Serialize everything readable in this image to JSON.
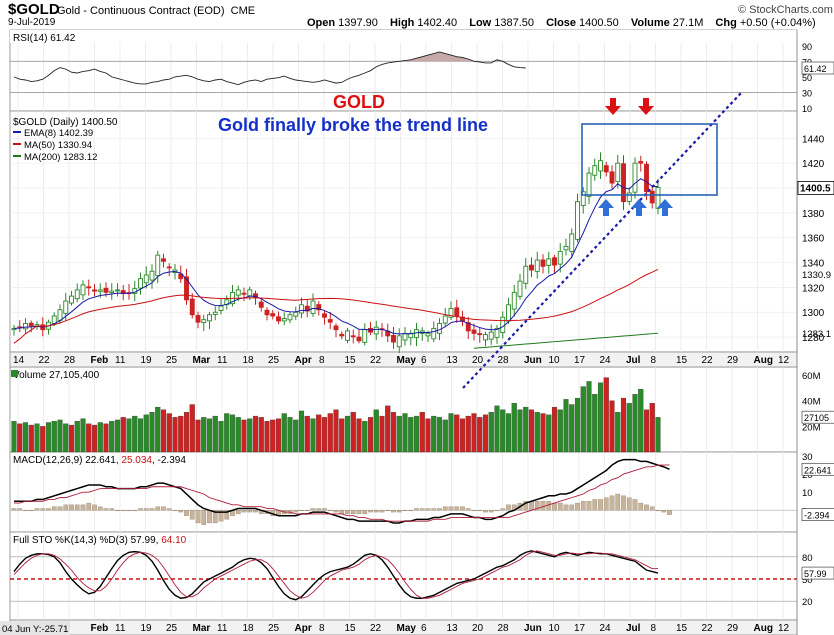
{
  "header": {
    "symbol": "$GOLD",
    "name": "Gold - Continuous Contract (EOD)",
    "exchange": "CME",
    "date": "9-Jul-2019",
    "open_label": "Open",
    "open": "1397.90",
    "high_label": "High",
    "high": "1402.40",
    "low_label": "Low",
    "low": "1387.50",
    "close_label": "Close",
    "close": "1400.50",
    "volume_label": "Volume",
    "volume": "27.1M",
    "chg_label": "Chg",
    "chg": "+0.50 (+0.04%)",
    "brand": "© StockCharts.com"
  },
  "colors": {
    "up": "#2a8a2a",
    "down": "#cc2222",
    "ema": "#1a1aa8",
    "ma50": "#cc1111",
    "ma200": "#1e7a1e",
    "annotation_red": "#dd1111",
    "annotation_blue": "#1530c8",
    "arrow_blue": "#2f6fd6",
    "box": "#2a63b8",
    "trendline": "#1a1aa8"
  },
  "chart_data": [
    {
      "type": "line",
      "panel": "RSI",
      "title": "RSI(14) 61.42",
      "last": 61.42,
      "last_label": "61.42",
      "ylim": [
        10,
        100
      ],
      "ticks": [
        "90",
        "70",
        "50",
        "30",
        "10"
      ],
      "reference_lines": [
        70,
        30
      ],
      "values": [
        50,
        47,
        46,
        44,
        45,
        47,
        52,
        58,
        62,
        60,
        56,
        55,
        57,
        58,
        60,
        57,
        55,
        50,
        48,
        46,
        44,
        42,
        41,
        41,
        43,
        44,
        46,
        47,
        50,
        51,
        52,
        50,
        47,
        45,
        44,
        46,
        47,
        44,
        42,
        40,
        43,
        45,
        46,
        44,
        47,
        48,
        49,
        51,
        48,
        46,
        45,
        44,
        43,
        44,
        46,
        44,
        42,
        43,
        47,
        50,
        52,
        55,
        58,
        63,
        66,
        68,
        69,
        70,
        71,
        72,
        74,
        76,
        78,
        80,
        82,
        80,
        78,
        76,
        75,
        73,
        70,
        69,
        68,
        68,
        72,
        70,
        66,
        63,
        62,
        61.42
      ]
    },
    {
      "type": "candlestick",
      "panel": "price",
      "title": "$GOLD (Daily) 1400.50",
      "legend": [
        {
          "label": "EMA(8) 1402.39",
          "color": "#1a1aa8"
        },
        {
          "label": "MA(50) 1330.94",
          "color": "#cc1111"
        },
        {
          "label": "MA(200) 1283.12",
          "color": "#1e7a1e"
        }
      ],
      "ylim": [
        1268,
        1462
      ],
      "yticks": [
        1440,
        1420,
        1400,
        1380,
        1360,
        1340,
        1320,
        1300,
        1280
      ],
      "last_labels": [
        {
          "text": "1400.5",
          "value": 1400.5,
          "style": "box"
        },
        {
          "text": "1330.9",
          "value": 1330.94,
          "style": "plain"
        },
        {
          "text": "1283.1",
          "value": 1283.12,
          "style": "plain"
        }
      ],
      "annotations": [
        "GOLD",
        "Gold finally broke the trend line"
      ],
      "x_labels": [
        "14",
        "22",
        "28",
        "Feb",
        "11",
        "19",
        "25",
        "Mar",
        "11",
        "18",
        "25",
        "Apr",
        "8",
        "15",
        "22",
        "May",
        "6",
        "13",
        "20",
        "28",
        "Jun",
        "10",
        "17",
        "24",
        "Jul",
        "8",
        "15",
        "22",
        "29",
        "Aug",
        "12"
      ],
      "close": [
        1287,
        1288,
        1291,
        1289,
        1290,
        1286,
        1292,
        1297,
        1302,
        1309,
        1313,
        1318,
        1322,
        1320,
        1317,
        1318,
        1316,
        1317,
        1318,
        1315,
        1315,
        1319,
        1327,
        1330,
        1333,
        1346,
        1341,
        1336,
        1334,
        1327,
        1310,
        1298,
        1292,
        1294,
        1298,
        1300,
        1305,
        1310,
        1316,
        1318,
        1315,
        1318,
        1312,
        1304,
        1298,
        1297,
        1293,
        1295,
        1298,
        1300,
        1306,
        1301,
        1309,
        1302,
        1296,
        1292,
        1286,
        1281,
        1285,
        1281,
        1277,
        1286,
        1284,
        1288,
        1286,
        1281,
        1276,
        1281,
        1283,
        1283,
        1286,
        1285,
        1283,
        1287,
        1291,
        1297,
        1303,
        1297,
        1293,
        1285,
        1283,
        1282,
        1282,
        1284,
        1287,
        1296,
        1306,
        1316,
        1325,
        1337,
        1334,
        1342,
        1337,
        1343,
        1338,
        1349,
        1353,
        1363,
        1389,
        1397,
        1412,
        1418,
        1422,
        1413,
        1404,
        1420,
        1389,
        1396,
        1420,
        1420,
        1397,
        1388,
        1400.5
      ],
      "volume_label": "Volume 27,105,400",
      "volume_ylim": [
        0,
        60000000
      ],
      "volume_ticks": [
        "60M",
        "40M",
        "20M"
      ],
      "volume_last_label": "27105",
      "volume": [
        24,
        22,
        23,
        21,
        22,
        20,
        23,
        24,
        25,
        22,
        21,
        24,
        26,
        22,
        21,
        23,
        22,
        24,
        25,
        27,
        26,
        28,
        26,
        29,
        31,
        35,
        33,
        30,
        27,
        28,
        31,
        37,
        25,
        27,
        26,
        28,
        24,
        30,
        29,
        27,
        25,
        26,
        28,
        27,
        24,
        25,
        26,
        30,
        27,
        25,
        32,
        28,
        26,
        29,
        27,
        30,
        33,
        26,
        28,
        31,
        26,
        24,
        27,
        33,
        28,
        36,
        31,
        28,
        30,
        27,
        28,
        31,
        26,
        28,
        27,
        25,
        30,
        29,
        26,
        28,
        30,
        27,
        29,
        31,
        36,
        33,
        30,
        38,
        33,
        35,
        33,
        31,
        30,
        29,
        35,
        33,
        41,
        37,
        42,
        51,
        55,
        45,
        54,
        58,
        40,
        31,
        42,
        38,
        45,
        49,
        33,
        38,
        27
      ],
      "volume_up": [
        1,
        0,
        1,
        0,
        1,
        0,
        1,
        1,
        1,
        1,
        0,
        1,
        1,
        0,
        0,
        1,
        0,
        1,
        1,
        0,
        1,
        1,
        1,
        1,
        1,
        1,
        0,
        0,
        0,
        0,
        0,
        0,
        0,
        1,
        1,
        1,
        1,
        1,
        1,
        1,
        0,
        1,
        0,
        0,
        0,
        0,
        0,
        1,
        1,
        1,
        1,
        0,
        1,
        0,
        0,
        0,
        0,
        0,
        1,
        0,
        0,
        1,
        0,
        1,
        0,
        0,
        0,
        1,
        1,
        1,
        1,
        0,
        0,
        1,
        1,
        1,
        1,
        0,
        0,
        0,
        0,
        0,
        0,
        1,
        1,
        1,
        1,
        1,
        1,
        1,
        0,
        1,
        0,
        1,
        0,
        1,
        1,
        1,
        1,
        1,
        1,
        1,
        1,
        0,
        0,
        1,
        0,
        1,
        1,
        1,
        0,
        0,
        1
      ]
    },
    {
      "type": "line",
      "panel": "MACD",
      "title": "MACD(12,26,9) 22.641, 25.034, -2.394",
      "title_parts": [
        "MACD(12,26,9) 22.641, ",
        "25.034",
        ", -2.394"
      ],
      "ylim": [
        -12,
        30
      ],
      "ticks": [
        "30",
        "20",
        "10",
        "0"
      ],
      "last_labels": [
        "22.641",
        "-2.394"
      ],
      "macd": [
        5,
        5,
        5,
        5,
        6,
        6,
        7,
        8,
        9,
        10,
        11,
        12,
        13,
        14,
        14,
        14,
        13,
        13,
        12,
        12,
        12,
        12,
        13,
        13,
        14,
        15,
        15,
        14,
        13,
        12,
        9,
        6,
        3,
        1,
        0,
        -1,
        -1,
        -1,
        0,
        1,
        1,
        1,
        1,
        0,
        -1,
        -2,
        -3,
        -3,
        -3,
        -3,
        -2,
        -2,
        -1,
        -1,
        -1,
        -2,
        -3,
        -4,
        -5,
        -5,
        -6,
        -6,
        -6,
        -6,
        -6,
        -6,
        -7,
        -7,
        -6,
        -6,
        -5,
        -5,
        -5,
        -4,
        -4,
        -3,
        -2,
        -2,
        -2,
        -3,
        -4,
        -4,
        -5,
        -5,
        -4,
        -3,
        -1,
        0,
        2,
        4,
        5,
        6,
        7,
        8,
        8,
        9,
        9,
        10,
        12,
        14,
        16,
        18,
        20,
        22,
        25,
        27,
        28,
        28,
        28,
        27,
        27,
        26,
        25,
        24,
        22.641
      ],
      "signal": [
        4,
        4,
        5,
        5,
        5,
        5,
        6,
        6,
        7,
        7,
        8,
        9,
        10,
        10,
        11,
        12,
        12,
        12,
        12,
        12,
        12,
        12,
        12,
        12,
        13,
        13,
        13,
        13,
        13,
        13,
        12,
        11,
        10,
        9,
        7,
        6,
        5,
        4,
        3,
        3,
        2,
        2,
        2,
        2,
        1,
        1,
        0,
        -1,
        -1,
        -2,
        -2,
        -2,
        -2,
        -2,
        -2,
        -2,
        -2,
        -2,
        -3,
        -3,
        -4,
        -4,
        -5,
        -5,
        -5,
        -6,
        -6,
        -6,
        -6,
        -6,
        -6,
        -6,
        -6,
        -5,
        -5,
        -5,
        -4,
        -4,
        -4,
        -4,
        -4,
        -4,
        -4,
        -4,
        -4,
        -4,
        -4,
        -3,
        -2,
        -1,
        0,
        1,
        2,
        3,
        4,
        5,
        6,
        7,
        8,
        9,
        11,
        12,
        14,
        15,
        17,
        18,
        20,
        21,
        22,
        23,
        24,
        24,
        25,
        25,
        25.034
      ]
    },
    {
      "type": "line",
      "panel": "Full STO",
      "title": "Full STO %K(14,3) %D(3) 57.99, 64.10",
      "title_parts": [
        "Full STO %K(14,3) %D(3) 57.99, ",
        "64.10"
      ],
      "ylim": [
        0,
        100
      ],
      "ticks": [
        "80",
        "50",
        "20"
      ],
      "reference_lines": [
        80,
        50,
        20
      ],
      "last_labels": [
        "57.99"
      ],
      "k": [
        60,
        70,
        78,
        82,
        84,
        84,
        83,
        80,
        72,
        60,
        50,
        42,
        35,
        30,
        32,
        40,
        52,
        64,
        75,
        82,
        86,
        87,
        86,
        82,
        74,
        62,
        48,
        36,
        28,
        24,
        25,
        30,
        38,
        46,
        50,
        54,
        58,
        62,
        66,
        72,
        76,
        78,
        77,
        72,
        64,
        52,
        40,
        30,
        24,
        22,
        26,
        34,
        42,
        50,
        56,
        60,
        62,
        64,
        66,
        70,
        76,
        82,
        84,
        82,
        76,
        66,
        54,
        42,
        32,
        26,
        24,
        24,
        26,
        28,
        32,
        36,
        40,
        44,
        46,
        48,
        50,
        54,
        58,
        62,
        66,
        68,
        72,
        76,
        82,
        86,
        88,
        86,
        84,
        82,
        80,
        84,
        86,
        84,
        82,
        84,
        86,
        85,
        84,
        84,
        82,
        80,
        78,
        76,
        74,
        68,
        62,
        60,
        57.99
      ],
      "d": [
        56,
        64,
        72,
        78,
        82,
        84,
        84,
        82,
        77,
        70,
        62,
        52,
        44,
        38,
        34,
        34,
        40,
        50,
        62,
        72,
        80,
        84,
        86,
        85,
        82,
        76,
        66,
        54,
        42,
        32,
        26,
        26,
        30,
        38,
        44,
        50,
        54,
        58,
        62,
        66,
        70,
        74,
        76,
        76,
        72,
        64,
        54,
        44,
        34,
        28,
        24,
        26,
        32,
        40,
        48,
        54,
        58,
        62,
        64,
        66,
        70,
        76,
        80,
        82,
        80,
        76,
        68,
        58,
        46,
        36,
        28,
        24,
        24,
        26,
        28,
        32,
        36,
        40,
        44,
        46,
        48,
        50,
        54,
        58,
        62,
        66,
        68,
        72,
        76,
        82,
        86,
        88,
        86,
        84,
        82,
        82,
        84,
        85,
        84,
        84,
        84,
        85,
        85,
        84,
        84,
        82,
        80,
        78,
        76,
        72,
        68,
        64,
        64.1
      ]
    }
  ],
  "footer": {
    "cursor_readout": "04 Jun Y:-25.71"
  }
}
